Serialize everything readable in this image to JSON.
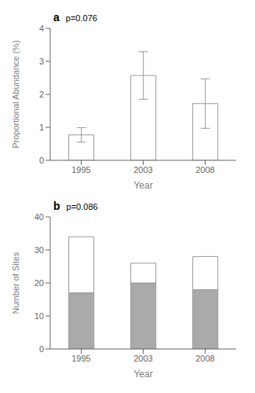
{
  "chart_data": [
    {
      "type": "bar",
      "title": "a",
      "annotations": [
        "p=0.076"
      ],
      "x_label": "Year",
      "y_label": "Proportional Abundance (%)",
      "categories": [
        "1995",
        "2003",
        "2008"
      ],
      "values": [
        0.77,
        2.57,
        1.72
      ],
      "errors": [
        0.22,
        0.72,
        0.75
      ],
      "color": "#ffffff",
      "ylim": [
        0,
        4
      ],
      "yticks": [
        0,
        1,
        2,
        3,
        4
      ],
      "grid": false
    },
    {
      "type": "bar",
      "title": "b",
      "annotations": [
        "p=0.086"
      ],
      "x_label": "Year",
      "y_label": "Number of Sites",
      "categories": [
        "1995",
        "2003",
        "2008"
      ],
      "series": [
        {
          "color": "#aaaaaa",
          "values": [
            17,
            20,
            18
          ]
        },
        {
          "color": "#ffffff",
          "values": [
            17,
            6,
            10
          ]
        }
      ],
      "stacked": true,
      "ylim": [
        0,
        40
      ],
      "yticks": [
        0,
        10,
        20,
        30,
        40
      ],
      "grid": false
    }
  ]
}
